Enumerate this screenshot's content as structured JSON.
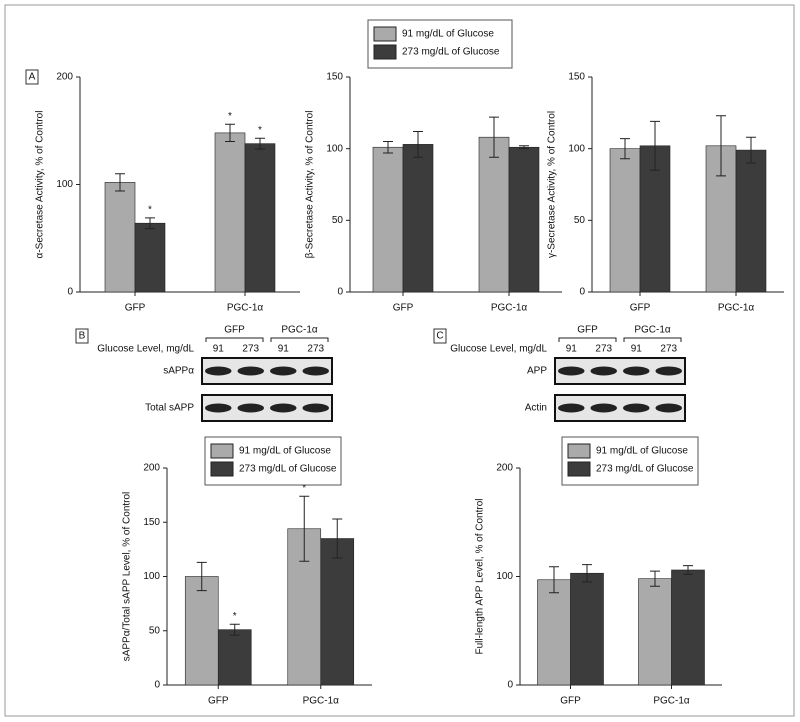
{
  "panels": [
    "A",
    "B",
    "C"
  ],
  "chart_data": [
    {
      "type": "bar",
      "y_label": "α-Secretase Activity, % of Control",
      "categories": [
        "GFP",
        "PGC-1α"
      ],
      "ylim": [
        0,
        200
      ],
      "yticks": [
        0,
        100,
        200
      ],
      "series": [
        {
          "name": "91 mg/dL of Glucose",
          "color": "#aaaaaa",
          "values": [
            102,
            148
          ],
          "errors": [
            8,
            8
          ],
          "significance": [
            null,
            "*"
          ]
        },
        {
          "name": "273 mg/dL of Glucose",
          "color": "#3c3c3c",
          "values": [
            64,
            138
          ],
          "errors": [
            5,
            5
          ],
          "significance": [
            "*",
            "*"
          ]
        }
      ]
    },
    {
      "type": "bar",
      "y_label": "β-Secretase Activity, % of Control",
      "categories": [
        "GFP",
        "PGC-1α"
      ],
      "ylim": [
        0,
        150
      ],
      "yticks": [
        0,
        50,
        100,
        150
      ],
      "series": [
        {
          "color": "#aaaaaa",
          "values": [
            101,
            108
          ],
          "errors": [
            4,
            14
          ]
        },
        {
          "color": "#3c3c3c",
          "values": [
            103,
            101
          ],
          "errors": [
            9,
            1
          ]
        }
      ]
    },
    {
      "type": "bar",
      "y_label": "γ-Secretase Activity, % of Control",
      "categories": [
        "GFP",
        "PGC-1α"
      ],
      "ylim": [
        0,
        150
      ],
      "yticks": [
        0,
        50,
        100,
        150
      ],
      "series": [
        {
          "color": "#aaaaaa",
          "values": [
            100,
            102
          ],
          "errors": [
            7,
            21
          ]
        },
        {
          "color": "#3c3c3c",
          "values": [
            102,
            99
          ],
          "errors": [
            17,
            9
          ]
        }
      ]
    },
    {
      "type": "bar",
      "y_label": "sAPPα/Total sAPP Level, % of Control",
      "categories": [
        "GFP",
        "PGC-1α"
      ],
      "ylim": [
        0,
        200
      ],
      "yticks": [
        0,
        50,
        100,
        150,
        200
      ],
      "series": [
        {
          "name": "91 mg/dL of Glucose",
          "color": "#aaaaaa",
          "values": [
            100,
            144
          ],
          "errors": [
            13,
            30
          ],
          "significance": [
            null,
            "*"
          ]
        },
        {
          "name": "273 mg/dL of Glucose",
          "color": "#3c3c3c",
          "values": [
            51,
            135
          ],
          "errors": [
            5,
            18
          ],
          "significance": [
            "*",
            null
          ]
        }
      ]
    },
    {
      "type": "bar",
      "y_label": "Full-length APP Level, % of Control",
      "categories": [
        "GFP",
        "PGC-1α"
      ],
      "ylim": [
        0,
        200
      ],
      "yticks": [
        0,
        100,
        200
      ],
      "series": [
        {
          "name": "91 mg/dL of Glucose",
          "color": "#aaaaaa",
          "values": [
            97,
            98
          ],
          "errors": [
            12,
            7
          ]
        },
        {
          "name": "273 mg/dL of Glucose",
          "color": "#3c3c3c",
          "values": [
            103,
            106
          ],
          "errors": [
            8,
            4
          ]
        }
      ]
    }
  ],
  "blots": [
    {
      "groups": [
        "GFP",
        "PGC-1α"
      ],
      "row_header": "Glucose Level, mg/dL",
      "lanes": [
        "91",
        "273",
        "91",
        "273"
      ],
      "rows": [
        "sAPPα",
        "Total sAPP"
      ]
    },
    {
      "groups": [
        "GFP",
        "PGC-1α"
      ],
      "row_header": "Glucose Level, mg/dL",
      "lanes": [
        "91",
        "273",
        "91",
        "273"
      ],
      "rows": [
        "APP",
        "Actin"
      ]
    }
  ]
}
